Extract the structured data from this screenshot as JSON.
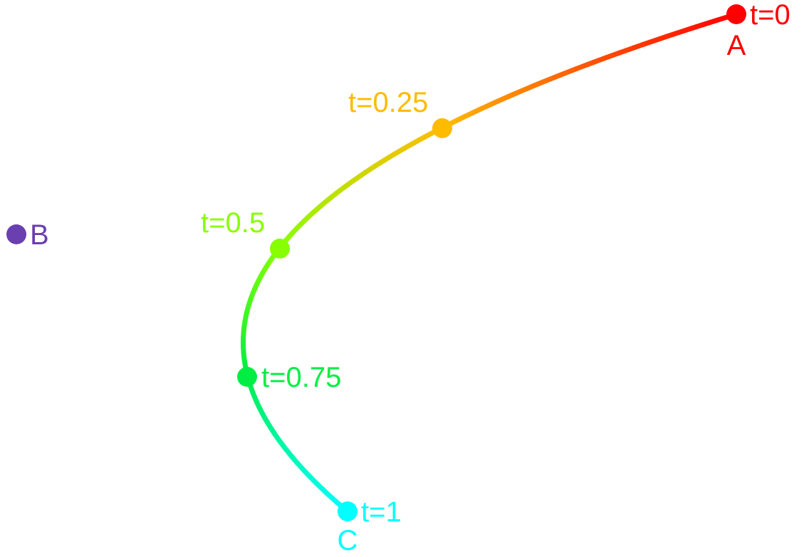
{
  "diagram": {
    "control_points": [
      {
        "label": "A",
        "color": "#ff0000"
      },
      {
        "label": "B",
        "color": "#6a3fb0"
      },
      {
        "label": "C",
        "color": "#00ffff"
      }
    ],
    "markers": [
      {
        "t": 0,
        "label": "t=0",
        "color": "#ff0000"
      },
      {
        "t": 0.25,
        "label": "t=0.25",
        "color": "#ffbb00"
      },
      {
        "t": 0.5,
        "label": "t=0.5",
        "color": "#88ff00"
      },
      {
        "t": 0.75,
        "label": "t=0.75",
        "color": "#00ee44"
      },
      {
        "t": 1,
        "label": "t=1",
        "color": "#00ffff"
      }
    ]
  }
}
